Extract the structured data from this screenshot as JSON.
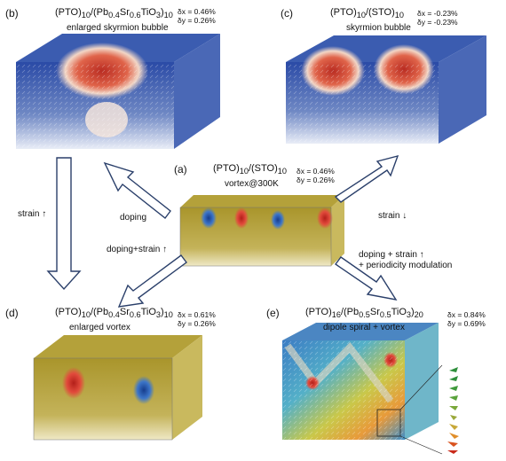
{
  "panels": {
    "b": {
      "label": "(b)",
      "title_html": "(PTO)<sub>10</sub>/(Pb<sub>0.4</sub>Sr<sub>0.6</sub>TiO<sub>3</sub>)<sub>10</sub>",
      "subtitle": "enlarged skyrmion bubble",
      "strain_x": "δx = 0.46%",
      "strain_y": "δy = 0.26%"
    },
    "c": {
      "label": "(c)",
      "title_html": "(PTO)<sub>10</sub>/(STO)<sub>10</sub>",
      "subtitle": "skyrmion bubble",
      "strain_x": "δx = -0.23%",
      "strain_y": "δy = -0.23%"
    },
    "a": {
      "label": "(a)",
      "title_html": "(PTO)<sub>10</sub>/(STO)<sub>10</sub>",
      "subtitle": "vortex@300K",
      "strain_x": "δx = 0.46%",
      "strain_y": "δy = 0.26%"
    },
    "d": {
      "label": "(d)",
      "title_html": "(PTO)<sub>10</sub>/(Pb<sub>0.4</sub>Sr<sub>0.6</sub>TiO<sub>3</sub>)<sub>10</sub>",
      "subtitle": "enlarged vortex",
      "strain_x": "δx = 0.61%",
      "strain_y": "δy = 0.26%"
    },
    "e": {
      "label": "(e)",
      "title_html": "(PTO)<sub>16</sub>/(Pb<sub>0.5</sub>Sr<sub>0.5</sub>TiO<sub>3</sub>)<sub>20</sub>",
      "subtitle": "dipole spiral + vortex",
      "strain_x": "δx = 0.84%",
      "strain_y": "δy = 0.69%"
    }
  },
  "arrows": {
    "doping": "doping",
    "strain_up_left": "strain ↑",
    "doping_strain": "doping+strain ↑",
    "strain_down": "strain ↓",
    "doping_strain_period_1": "doping + strain ↑",
    "doping_strain_period_2": "+ periodicity modulation"
  },
  "colors": {
    "blue_domain": "#1f3f8f",
    "red_core": "#c8332a",
    "gold_vortex": "#b6a43c",
    "arrow_outline": "#2a3f6a"
  }
}
